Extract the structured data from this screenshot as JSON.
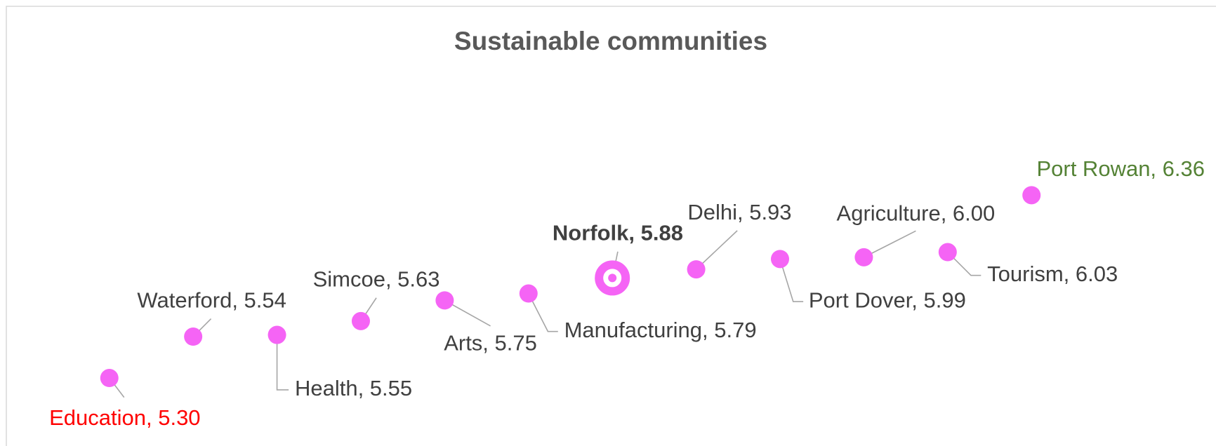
{
  "chart_data": {
    "type": "scatter",
    "title": "Sustainable communities",
    "categories": [
      "Education",
      "Waterford",
      "Health",
      "Simcoe",
      "Arts",
      "Manufacturing",
      "Norfolk",
      "Delhi",
      "Port Dover",
      "Agriculture",
      "Tourism",
      "Port Rowan"
    ],
    "values": [
      5.3,
      5.54,
      5.55,
      5.63,
      5.75,
      5.79,
      5.88,
      5.93,
      5.99,
      6.0,
      6.03,
      6.36
    ],
    "value_labels": [
      "Education, 5.30",
      "Waterford, 5.54",
      "Health, 5.55",
      "Simcoe, 5.63",
      "Arts, 5.75",
      "Manufacturing, 5.79",
      "Norfolk, 5.88",
      "Delhi, 5.93",
      "Port Dover, 5.99",
      "Agriculture, 6.00",
      "Tourism, 6.03",
      "Port Rowan, 6.36"
    ],
    "color": "#f564f5",
    "label_colors": [
      "#ff0000",
      "#404040",
      "#404040",
      "#404040",
      "#404040",
      "#404040",
      "#404040",
      "#404040",
      "#404040",
      "#404040",
      "#404040",
      "#548235"
    ],
    "emphasized_index": 6
  }
}
